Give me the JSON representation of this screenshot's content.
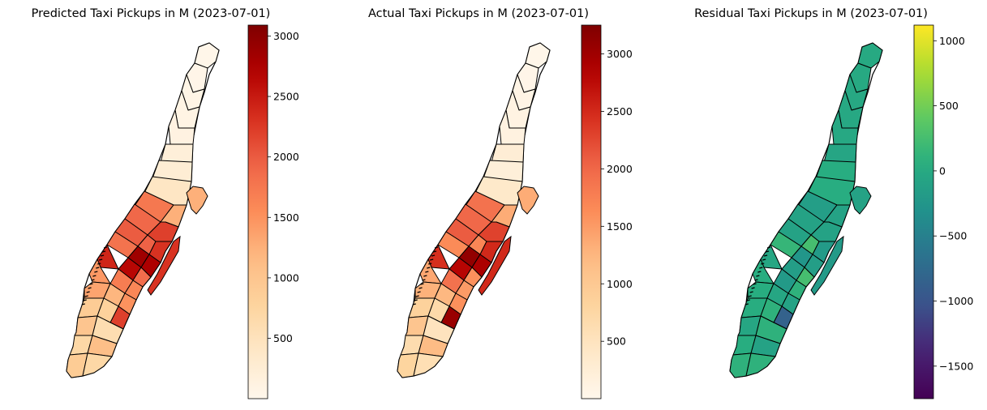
{
  "chart_data": [
    {
      "type": "choropleth",
      "title": "Predicted Taxi Pickups in M (2023-07-01)",
      "colormap": "OrRd",
      "colorbar": {
        "vmin": 1,
        "vmax": 3090,
        "ticks": [
          500,
          1000,
          1500,
          2000,
          2500,
          3000
        ]
      },
      "zone_values": [
        30,
        40,
        60,
        90,
        120,
        200,
        260,
        420,
        1750,
        1250,
        1900,
        2200,
        2000,
        1950,
        2300,
        1800,
        2850,
        2750,
        2650,
        2400,
        1850,
        1700,
        1450,
        1600,
        1350,
        1200,
        1500,
        2200,
        900,
        800,
        1000,
        600,
        700,
        1100,
        900,
        700
      ]
    },
    {
      "type": "choropleth",
      "title": "Actual Taxi Pickups in M (2023-07-01)",
      "colormap": "OrRd",
      "colorbar": {
        "vmin": 1,
        "vmax": 3250,
        "ticks": [
          500,
          1000,
          1500,
          2000,
          2500,
          3000
        ]
      },
      "zone_values": [
        30,
        50,
        80,
        110,
        140,
        260,
        220,
        380,
        1900,
        1350,
        2000,
        2300,
        2100,
        1700,
        2500,
        1650,
        3100,
        2900,
        2800,
        2450,
        1600,
        1900,
        1400,
        1500,
        1300,
        1250,
        1600,
        3050,
        850,
        700,
        1050,
        500,
        650,
        1200,
        800,
        600
      ]
    },
    {
      "type": "choropleth",
      "title": "Residual Taxi Pickups in M (2023-07-01)",
      "colormap": "viridis",
      "colorbar": {
        "vmin": -1750,
        "vmax": 1120,
        "ticks": [
          -1500,
          -1000,
          -500,
          0,
          500,
          1000
        ],
        "tick_labels": [
          "−1500",
          "−1000",
          "−500",
          "0",
          "500",
          "1000"
        ]
      },
      "zone_values": [
        0,
        -10,
        -20,
        -20,
        -20,
        -60,
        40,
        40,
        -150,
        -100,
        -100,
        -100,
        -100,
        250,
        -200,
        150,
        -250,
        -150,
        -150,
        -50,
        250,
        -200,
        50,
        100,
        50,
        -50,
        -100,
        -850,
        50,
        100,
        -50,
        100,
        50,
        -100,
        100,
        100
      ]
    }
  ]
}
